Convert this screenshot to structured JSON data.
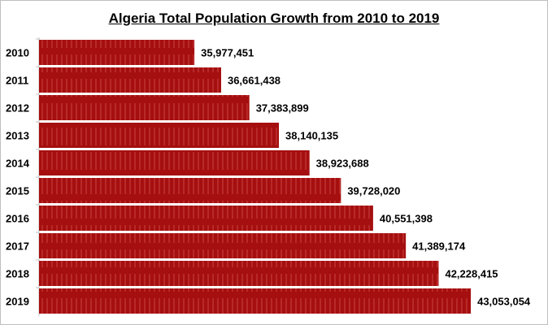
{
  "chart_data": {
    "type": "bar",
    "orientation": "horizontal",
    "title": "Algeria Total Population Growth from 2010 to 2019",
    "categories": [
      "2010",
      "2011",
      "2012",
      "2013",
      "2014",
      "2015",
      "2016",
      "2017",
      "2018",
      "2019"
    ],
    "values": [
      35977451,
      36661438,
      37383899,
      38140135,
      38923688,
      39728020,
      40551398,
      41389174,
      42228415,
      43053054
    ],
    "labels": [
      "35,977,451",
      "36,661,438",
      "37,383,899",
      "38,140,135",
      "38,923,688",
      "39,728,020",
      "40,551,398",
      "41,389,174",
      "42,228,415",
      "43,053,054"
    ],
    "xlim": [
      32000000,
      44000000
    ],
    "grid": false,
    "legend": "none",
    "colors": {
      "bar": "#a50f0f",
      "bar_stripe": "#c43a3a"
    }
  }
}
